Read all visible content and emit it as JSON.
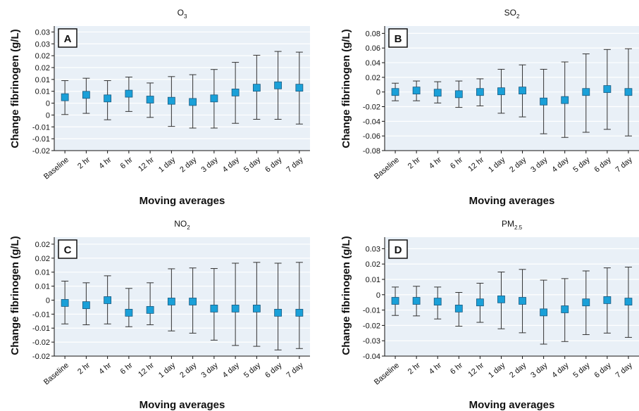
{
  "colors": {
    "marker": "#1aa0d8",
    "marker_stroke": "#1a5a80",
    "panel_bg": "#e9f0f7",
    "grid": "#ffffff",
    "errorbar": "#333333"
  },
  "chart_data": [
    {
      "type": "scatter",
      "letter": "A",
      "title_main": "O",
      "title_sub": "3",
      "xlabel": "Moving averages",
      "ylabel": "Change fibrinogen (g/L)",
      "categories": [
        "Baseline",
        "2 hr",
        "4 hr",
        "6 hr",
        "12 hr",
        "1 day",
        "2 day",
        "3 day",
        "4 day",
        "5 day",
        "6 day",
        "7 day"
      ],
      "ylim": [
        -0.02,
        0.0325
      ],
      "yticks": [
        -0.02,
        -0.015,
        -0.01,
        -0.005,
        0,
        0.005,
        0.01,
        0.015,
        0.02,
        0.025,
        0.03
      ],
      "yticklabels": [
        "-0.02",
        "-0.01",
        "-0.01",
        "0",
        "0",
        "0.01",
        "0.01",
        "0.02",
        "0.02",
        "0.03",
        "0.03"
      ],
      "series": [
        {
          "values": [
            0.0025,
            0.0035,
            0.002,
            0.004,
            0.0015,
            0.001,
            0.0005,
            0.002,
            0.0045,
            0.0065,
            0.0075,
            0.0065
          ],
          "lower": [
            -0.0048,
            -0.0043,
            -0.007,
            -0.0035,
            -0.006,
            -0.0098,
            -0.0105,
            -0.0105,
            -0.0085,
            -0.0068,
            -0.0068,
            -0.0088
          ],
          "upper": [
            0.0095,
            0.0105,
            0.0095,
            0.011,
            0.0085,
            0.0112,
            0.012,
            0.0142,
            0.0172,
            0.0202,
            0.0218,
            0.0215
          ]
        }
      ]
    },
    {
      "type": "scatter",
      "letter": "B",
      "title_main": "SO",
      "title_sub": "2",
      "xlabel": "Moving averages",
      "ylabel": "Change fibrinogen (g/L)",
      "categories": [
        "Baseline",
        "2 hr",
        "4 hr",
        "6 hr",
        "12 hr",
        "1 day",
        "2 day",
        "3 day",
        "4 day",
        "5 day",
        "6 day",
        "7 day"
      ],
      "ylim": [
        -0.08,
        0.09
      ],
      "yticks": [
        -0.08,
        -0.06,
        -0.04,
        -0.02,
        0,
        0.02,
        0.04,
        0.06,
        0.08
      ],
      "yticklabels": [
        "-0.08",
        "-0.06",
        "-0.04",
        "-0.02",
        "0",
        "0.02",
        "0.04",
        "0.06",
        "0.08"
      ],
      "series": [
        {
          "values": [
            0.0,
            0.002,
            -0.001,
            -0.003,
            0.0,
            0.001,
            0.002,
            -0.013,
            -0.011,
            0.0,
            0.004,
            0.0
          ],
          "lower": [
            -0.012,
            -0.012,
            -0.015,
            -0.021,
            -0.019,
            -0.029,
            -0.034,
            -0.057,
            -0.062,
            -0.055,
            -0.051,
            -0.06
          ],
          "upper": [
            0.012,
            0.015,
            0.014,
            0.015,
            0.018,
            0.031,
            0.037,
            0.031,
            0.041,
            0.052,
            0.058,
            0.059
          ]
        }
      ]
    },
    {
      "type": "scatter",
      "letter": "C",
      "title_main": "NO",
      "title_sub": "2",
      "xlabel": "Moving averages",
      "ylabel": "Change fibrinogen (g/L)",
      "categories": [
        "Baseline",
        "2 hr",
        "4 hr",
        "6 hr",
        "12 hr",
        "1 day",
        "2 day",
        "3 day",
        "4 day",
        "5 day",
        "6 day",
        "7 day"
      ],
      "ylim": [
        -0.02,
        0.0225
      ],
      "yticks": [
        -0.02,
        -0.015,
        -0.01,
        -0.005,
        0,
        0.005,
        0.01,
        0.015,
        0.02
      ],
      "yticklabels": [
        "-0.02",
        "-0.02",
        "-0.01",
        "-0.01",
        "0",
        "0.01",
        "0.01",
        "0.02",
        "0.02"
      ],
      "series": [
        {
          "values": [
            -0.001,
            -0.0018,
            0.0,
            -0.0045,
            -0.0035,
            -0.0005,
            -0.0005,
            -0.003,
            -0.003,
            -0.003,
            -0.0045,
            -0.0045
          ],
          "lower": [
            -0.0085,
            -0.0088,
            -0.0085,
            -0.0095,
            -0.0088,
            -0.011,
            -0.0118,
            -0.0143,
            -0.0162,
            -0.0165,
            -0.0178,
            -0.0173
          ],
          "upper": [
            0.0068,
            0.0062,
            0.0087,
            0.0042,
            0.0062,
            0.0112,
            0.0115,
            0.0113,
            0.0132,
            0.0135,
            0.0132,
            0.0135
          ]
        }
      ]
    },
    {
      "type": "scatter",
      "letter": "D",
      "title_main": "PM",
      "title_sub": "2.5",
      "xlabel": "Moving averages",
      "ylabel": "Change fibrinogen (g/L)",
      "categories": [
        "Baseline",
        "2 hr",
        "4 hr",
        "6 hr",
        "12 hr",
        "1 day",
        "2 day",
        "3 day",
        "4 day",
        "5 day",
        "6 day",
        "7 day"
      ],
      "ylim": [
        -0.04,
        0.0375
      ],
      "yticks": [
        -0.04,
        -0.03,
        -0.02,
        -0.01,
        0,
        0.01,
        0.02,
        0.03
      ],
      "yticklabels": [
        "-0.04",
        "-0.03",
        "-0.02",
        "-0.01",
        "0",
        "0.01",
        "0.02",
        "0.03"
      ],
      "series": [
        {
          "values": [
            -0.004,
            -0.004,
            -0.0045,
            -0.009,
            -0.005,
            -0.003,
            -0.004,
            -0.0115,
            -0.0095,
            -0.005,
            -0.0035,
            -0.0045
          ],
          "lower": [
            -0.0135,
            -0.0138,
            -0.0158,
            -0.0205,
            -0.018,
            -0.0222,
            -0.0248,
            -0.0322,
            -0.0305,
            -0.026,
            -0.025,
            -0.0278
          ],
          "upper": [
            0.005,
            0.0055,
            0.005,
            0.0015,
            0.0075,
            0.0148,
            0.0165,
            0.0095,
            0.0105,
            0.0155,
            0.0175,
            0.018
          ]
        }
      ]
    }
  ]
}
